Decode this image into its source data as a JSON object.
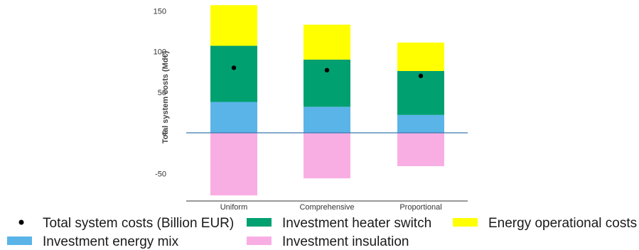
{
  "chart_data": {
    "type": "bar",
    "stacked": true,
    "categories": [
      "Uniform",
      "Comprehensive",
      "Proportional"
    ],
    "ylabel": "Total system costs (Md€)",
    "ylim": [
      -82,
      158
    ],
    "yticks": [
      -50,
      0,
      50,
      100,
      150
    ],
    "grid": false,
    "zero_line": true,
    "legend_position": "bottom",
    "series": [
      {
        "name": "Investment energy mix",
        "color": "#5ab4e8",
        "values": [
          38,
          32,
          22
        ]
      },
      {
        "name": "Investment heater switch",
        "color": "#00a070",
        "values": [
          69,
          58,
          54
        ]
      },
      {
        "name": "Energy operational costs",
        "color": "#ffff00",
        "values": [
          50,
          43,
          35
        ]
      },
      {
        "name": "Investment insulation",
        "color": "#f9aee3",
        "values": [
          -77,
          -56,
          -41
        ]
      }
    ],
    "markers": {
      "name": "Total system costs (Billion EUR)",
      "color": "#000000",
      "values": [
        80,
        77,
        70
      ]
    }
  },
  "legend": {
    "items": [
      {
        "label": "Total system costs (Billion EUR)",
        "kind": "dot",
        "color": "#000000"
      },
      {
        "label": "Investment heater switch",
        "kind": "patch",
        "color": "#00a070"
      },
      {
        "label": "Energy operational costs",
        "kind": "patch",
        "color": "#ffff00"
      },
      {
        "label": "Investment energy mix",
        "kind": "patch",
        "color": "#5ab4e8"
      },
      {
        "label": "Investment insulation",
        "kind": "patch",
        "color": "#f9aee3"
      }
    ]
  }
}
